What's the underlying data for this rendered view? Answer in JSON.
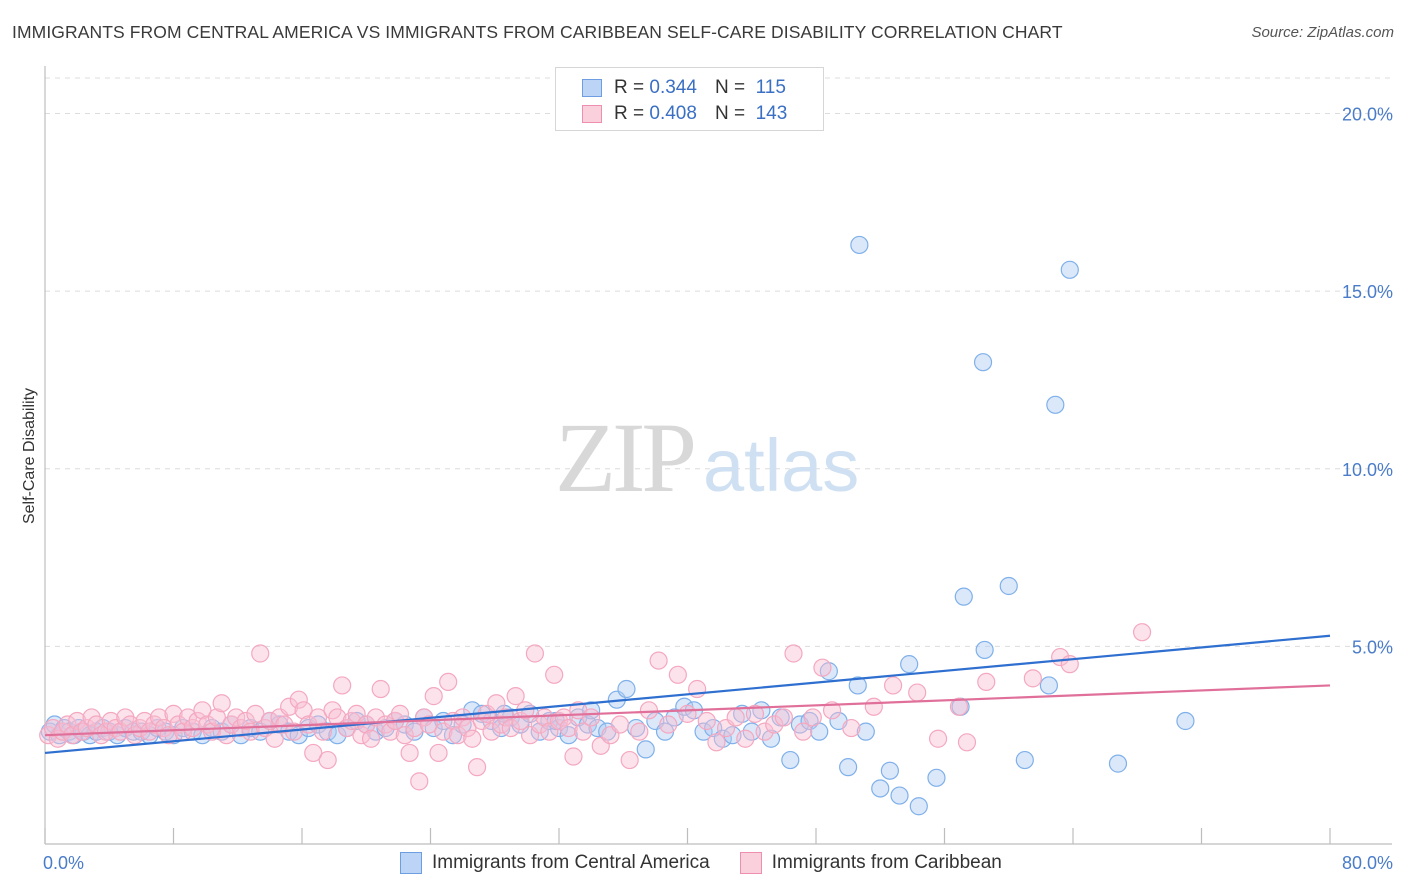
{
  "title": "IMMIGRANTS FROM CENTRAL AMERICA VS IMMIGRANTS FROM CARIBBEAN SELF-CARE DISABILITY CORRELATION CHART",
  "source": "Source: ZipAtlas.com",
  "watermark": {
    "zip": "ZIP",
    "atlas": "atlas"
  },
  "legend": {
    "rows": [
      {
        "r_label": "R =",
        "r_value": "0.344",
        "n_label": "N =",
        "n_value": "115"
      },
      {
        "r_label": "R =",
        "r_value": "0.408",
        "n_label": "N =",
        "n_value": "143"
      }
    ]
  },
  "chart_data": {
    "type": "scatter",
    "ylabel": "Self-Care Disability",
    "xlim": [
      0,
      80
    ],
    "ylim": [
      0,
      21
    ],
    "x_tick_labels": [
      "0.0%",
      "80.0%"
    ],
    "y_ticks": [
      5,
      10,
      15,
      20
    ],
    "y_tick_labels": [
      "5.0%",
      "10.0%",
      "15.0%",
      "20.0%"
    ],
    "grid": true,
    "legend_placement": "top-center",
    "series": [
      {
        "name": "Immigrants from Central America",
        "color": "#7fb0ea",
        "trend_color": "#2f6fd0",
        "trend": [
          [
            0,
            2.0
          ],
          [
            80,
            5.3
          ]
        ],
        "points": [
          [
            0.3,
            2.6
          ],
          [
            0.6,
            2.8
          ],
          [
            0.9,
            2.5
          ],
          [
            1.2,
            2.7
          ],
          [
            1.5,
            2.6
          ],
          [
            1.8,
            2.5
          ],
          [
            2.1,
            2.7
          ],
          [
            2.4,
            2.6
          ],
          [
            2.8,
            2.5
          ],
          [
            3.2,
            2.6
          ],
          [
            3.6,
            2.7
          ],
          [
            4.0,
            2.6
          ],
          [
            4.5,
            2.5
          ],
          [
            5.0,
            2.7
          ],
          [
            5.5,
            2.6
          ],
          [
            6.0,
            2.6
          ],
          [
            6.5,
            2.5
          ],
          [
            7.0,
            2.7
          ],
          [
            7.5,
            2.6
          ],
          [
            8.0,
            2.5
          ],
          [
            8.6,
            2.7
          ],
          [
            9.2,
            2.6
          ],
          [
            9.8,
            2.5
          ],
          [
            10.4,
            2.7
          ],
          [
            11.0,
            2.6
          ],
          [
            11.6,
            2.8
          ],
          [
            12.2,
            2.5
          ],
          [
            12.8,
            2.7
          ],
          [
            13.4,
            2.6
          ],
          [
            14.0,
            2.9
          ],
          [
            14.6,
            2.8
          ],
          [
            15.2,
            2.6
          ],
          [
            15.8,
            2.5
          ],
          [
            16.4,
            2.7
          ],
          [
            17.0,
            2.8
          ],
          [
            17.6,
            2.6
          ],
          [
            18.2,
            2.5
          ],
          [
            18.8,
            2.7
          ],
          [
            19.4,
            2.9
          ],
          [
            20.0,
            2.8
          ],
          [
            20.6,
            2.6
          ],
          [
            21.2,
            2.7
          ],
          [
            21.8,
            2.9
          ],
          [
            22.4,
            2.8
          ],
          [
            23.0,
            2.6
          ],
          [
            23.6,
            3.0
          ],
          [
            24.2,
            2.7
          ],
          [
            24.8,
            2.9
          ],
          [
            25.4,
            2.5
          ],
          [
            26.0,
            2.8
          ],
          [
            26.6,
            3.2
          ],
          [
            27.2,
            3.1
          ],
          [
            27.8,
            2.9
          ],
          [
            28.4,
            2.7
          ],
          [
            29.0,
            3.0
          ],
          [
            29.6,
            2.8
          ],
          [
            30.2,
            3.1
          ],
          [
            30.8,
            2.6
          ],
          [
            31.4,
            2.9
          ],
          [
            32.0,
            2.7
          ],
          [
            32.6,
            2.5
          ],
          [
            33.2,
            3.0
          ],
          [
            33.8,
            2.8
          ],
          [
            34.4,
            2.7
          ],
          [
            35.0,
            2.6
          ],
          [
            35.6,
            3.5
          ],
          [
            36.2,
            3.8
          ],
          [
            36.8,
            2.7
          ],
          [
            37.4,
            2.1
          ],
          [
            38.0,
            2.9
          ],
          [
            38.6,
            2.6
          ],
          [
            39.2,
            3.0
          ],
          [
            39.8,
            3.3
          ],
          [
            40.4,
            3.2
          ],
          [
            41.0,
            2.6
          ],
          [
            41.6,
            2.7
          ],
          [
            42.2,
            2.4
          ],
          [
            42.8,
            2.5
          ],
          [
            43.4,
            3.1
          ],
          [
            44.0,
            2.6
          ],
          [
            44.6,
            3.2
          ],
          [
            45.2,
            2.4
          ],
          [
            45.8,
            3.0
          ],
          [
            46.4,
            1.8
          ],
          [
            47.0,
            2.8
          ],
          [
            47.6,
            2.9
          ],
          [
            48.2,
            2.6
          ],
          [
            48.8,
            4.3
          ],
          [
            49.4,
            2.9
          ],
          [
            50.0,
            1.6
          ],
          [
            50.6,
            3.9
          ],
          [
            51.1,
            2.6
          ],
          [
            52.0,
            1.0
          ],
          [
            52.6,
            1.5
          ],
          [
            53.2,
            0.8
          ],
          [
            53.8,
            4.5
          ],
          [
            54.4,
            0.5
          ],
          [
            55.5,
            1.3
          ],
          [
            57.0,
            3.3
          ],
          [
            58.5,
            4.9
          ],
          [
            61.0,
            1.8
          ],
          [
            62.5,
            3.9
          ],
          [
            66.8,
            1.7
          ],
          [
            71.0,
            2.9
          ],
          [
            50.7,
            16.3
          ],
          [
            63.8,
            15.6
          ],
          [
            58.4,
            13.0
          ],
          [
            62.9,
            11.8
          ],
          [
            57.2,
            6.4
          ],
          [
            60.0,
            6.7
          ],
          [
            28.6,
            3.1
          ],
          [
            31.8,
            2.9
          ],
          [
            34.0,
            3.2
          ]
        ]
      },
      {
        "name": "Immigrants from Caribbean",
        "color": "#f4a8c0",
        "trend_color": "#e0709a",
        "trend": [
          [
            0,
            2.5
          ],
          [
            80,
            3.9
          ]
        ],
        "points": [
          [
            0.2,
            2.5
          ],
          [
            0.5,
            2.7
          ],
          [
            0.8,
            2.4
          ],
          [
            1.1,
            2.6
          ],
          [
            1.4,
            2.8
          ],
          [
            1.7,
            2.5
          ],
          [
            2.0,
            2.9
          ],
          [
            2.3,
            2.6
          ],
          [
            2.6,
            2.7
          ],
          [
            2.9,
            3.0
          ],
          [
            3.2,
            2.8
          ],
          [
            3.5,
            2.5
          ],
          [
            3.8,
            2.6
          ],
          [
            4.1,
            2.9
          ],
          [
            4.4,
            2.7
          ],
          [
            4.7,
            2.6
          ],
          [
            5.0,
            3.0
          ],
          [
            5.3,
            2.8
          ],
          [
            5.6,
            2.5
          ],
          [
            5.9,
            2.7
          ],
          [
            6.2,
            2.9
          ],
          [
            6.5,
            2.6
          ],
          [
            6.8,
            2.8
          ],
          [
            7.1,
            3.0
          ],
          [
            7.4,
            2.7
          ],
          [
            7.7,
            2.5
          ],
          [
            8.0,
            3.1
          ],
          [
            8.3,
            2.8
          ],
          [
            8.6,
            2.6
          ],
          [
            8.9,
            3.0
          ],
          [
            9.2,
            2.7
          ],
          [
            9.5,
            2.9
          ],
          [
            9.8,
            3.2
          ],
          [
            10.1,
            2.8
          ],
          [
            10.4,
            2.6
          ],
          [
            10.7,
            3.0
          ],
          [
            11.0,
            3.4
          ],
          [
            11.3,
            2.5
          ],
          [
            11.6,
            2.8
          ],
          [
            11.9,
            3.0
          ],
          [
            12.2,
            2.7
          ],
          [
            12.5,
            2.9
          ],
          [
            12.8,
            2.6
          ],
          [
            13.1,
            3.1
          ],
          [
            13.4,
            4.8
          ],
          [
            13.7,
            2.7
          ],
          [
            14.0,
            2.9
          ],
          [
            14.3,
            2.4
          ],
          [
            14.6,
            3.0
          ],
          [
            14.9,
            2.8
          ],
          [
            15.2,
            3.3
          ],
          [
            15.5,
            2.6
          ],
          [
            15.8,
            3.5
          ],
          [
            16.1,
            3.2
          ],
          [
            16.4,
            2.8
          ],
          [
            16.7,
            2.0
          ],
          [
            17.0,
            3.0
          ],
          [
            17.3,
            2.6
          ],
          [
            17.6,
            1.8
          ],
          [
            17.9,
            3.2
          ],
          [
            18.2,
            3.0
          ],
          [
            18.5,
            3.9
          ],
          [
            18.8,
            2.7
          ],
          [
            19.1,
            2.9
          ],
          [
            19.4,
            3.1
          ],
          [
            19.7,
            2.5
          ],
          [
            20.0,
            2.8
          ],
          [
            20.3,
            2.4
          ],
          [
            20.6,
            3.0
          ],
          [
            20.9,
            3.8
          ],
          [
            21.2,
            2.8
          ],
          [
            21.5,
            2.6
          ],
          [
            21.8,
            2.9
          ],
          [
            22.1,
            3.1
          ],
          [
            22.4,
            2.5
          ],
          [
            22.7,
            2.0
          ],
          [
            23.0,
            2.7
          ],
          [
            23.3,
            1.2
          ],
          [
            23.6,
            3.0
          ],
          [
            23.9,
            2.8
          ],
          [
            24.2,
            3.6
          ],
          [
            24.5,
            2.0
          ],
          [
            24.8,
            2.6
          ],
          [
            25.1,
            4.0
          ],
          [
            25.4,
            2.9
          ],
          [
            25.7,
            2.5
          ],
          [
            26.0,
            3.0
          ],
          [
            26.3,
            2.7
          ],
          [
            26.6,
            2.4
          ],
          [
            26.9,
            1.6
          ],
          [
            27.2,
            2.9
          ],
          [
            27.5,
            3.1
          ],
          [
            27.8,
            2.6
          ],
          [
            28.1,
            3.4
          ],
          [
            28.4,
            2.8
          ],
          [
            28.7,
            3.0
          ],
          [
            29.0,
            2.7
          ],
          [
            29.3,
            3.6
          ],
          [
            29.6,
            2.9
          ],
          [
            29.9,
            3.2
          ],
          [
            30.2,
            2.5
          ],
          [
            30.5,
            4.8
          ],
          [
            30.8,
            2.8
          ],
          [
            31.1,
            3.0
          ],
          [
            31.4,
            2.6
          ],
          [
            31.7,
            4.2
          ],
          [
            32.0,
            2.9
          ],
          [
            32.3,
            3.0
          ],
          [
            32.6,
            2.7
          ],
          [
            32.9,
            1.9
          ],
          [
            33.2,
            3.2
          ],
          [
            33.5,
            2.6
          ],
          [
            34.0,
            3.0
          ],
          [
            34.6,
            2.2
          ],
          [
            35.2,
            2.5
          ],
          [
            35.8,
            2.8
          ],
          [
            36.4,
            1.8
          ],
          [
            37.0,
            2.6
          ],
          [
            37.6,
            3.2
          ],
          [
            38.2,
            4.6
          ],
          [
            38.8,
            2.8
          ],
          [
            39.4,
            4.2
          ],
          [
            40.0,
            3.1
          ],
          [
            40.6,
            3.8
          ],
          [
            41.2,
            2.9
          ],
          [
            41.8,
            2.3
          ],
          [
            42.4,
            2.7
          ],
          [
            43.0,
            3.0
          ],
          [
            43.6,
            2.4
          ],
          [
            44.2,
            3.1
          ],
          [
            44.8,
            2.6
          ],
          [
            45.4,
            2.8
          ],
          [
            46.0,
            3.0
          ],
          [
            46.6,
            4.8
          ],
          [
            47.2,
            2.6
          ],
          [
            47.8,
            3.0
          ],
          [
            48.4,
            4.4
          ],
          [
            49.0,
            3.2
          ],
          [
            50.2,
            2.7
          ],
          [
            51.6,
            3.3
          ],
          [
            52.8,
            3.9
          ],
          [
            54.3,
            3.7
          ],
          [
            55.6,
            2.4
          ],
          [
            56.9,
            3.3
          ],
          [
            57.4,
            2.3
          ],
          [
            58.6,
            4.0
          ],
          [
            61.5,
            4.1
          ],
          [
            63.2,
            4.7
          ],
          [
            63.8,
            4.5
          ],
          [
            68.3,
            5.4
          ]
        ]
      }
    ]
  }
}
